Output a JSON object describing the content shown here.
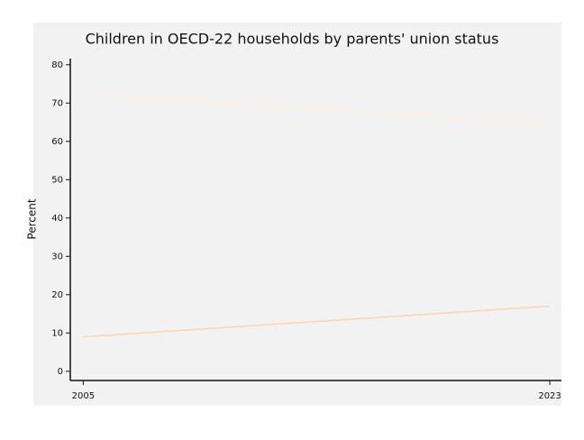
{
  "chart_data": {
    "type": "line",
    "title": "Children in OECD-22 households by parents' union status",
    "y_label": "Percent",
    "x": [
      2005,
      2023
    ],
    "series": [
      {
        "color": "#fdf0dc",
        "values": [
          72.5,
          65
        ]
      },
      {
        "color": "#fdd5ad",
        "values": [
          9,
          17
        ]
      }
    ],
    "xlim": [
      2004.5,
      2023.45
    ],
    "xticks": [
      2005,
      2023
    ],
    "ylim": [
      -2.4,
      81.6
    ],
    "yticks": [
      0,
      10,
      20,
      30,
      40,
      50,
      60,
      70,
      80
    ]
  }
}
